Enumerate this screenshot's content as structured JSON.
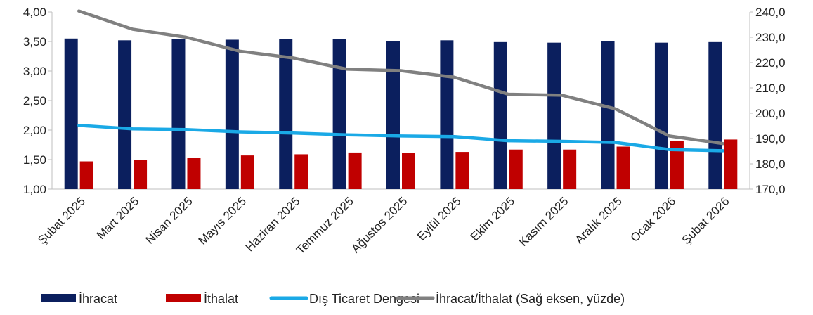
{
  "chart_data": {
    "type": "bar",
    "categories": [
      "Şubat 2025",
      "Mart 2025",
      "Nisan 2025",
      "Mayıs 2025",
      "Haziran 2025",
      "Temmuz 2025",
      "Ağustos 2025",
      "Eylül 2025",
      "Ekim 2025",
      "Kasım 2025",
      "Aralık 2025",
      "Ocak 2026",
      "Şubat 2026"
    ],
    "series": [
      {
        "name": "İhracat",
        "kind": "bar",
        "axis": "left",
        "color": "#0b1f5e",
        "values": [
          3.55,
          3.52,
          3.54,
          3.53,
          3.54,
          3.54,
          3.51,
          3.52,
          3.49,
          3.48,
          3.51,
          3.48,
          3.49
        ]
      },
      {
        "name": "İthalat",
        "kind": "bar",
        "axis": "left",
        "color": "#c00000",
        "values": [
          1.47,
          1.5,
          1.53,
          1.57,
          1.59,
          1.62,
          1.61,
          1.63,
          1.67,
          1.67,
          1.72,
          1.81,
          1.84
        ]
      },
      {
        "name": "Dış Ticaret Dengesi",
        "kind": "line",
        "axis": "left",
        "color": "#1aa9e6",
        "values": [
          2.08,
          2.02,
          2.01,
          1.97,
          1.95,
          1.92,
          1.9,
          1.89,
          1.82,
          1.81,
          1.79,
          1.67,
          1.65
        ]
      },
      {
        "name": "İhracat/İthalat (Sağ eksen, yüzde)",
        "kind": "line",
        "axis": "right",
        "color": "#808080",
        "values": [
          240.4,
          233.2,
          230.0,
          224.5,
          221.8,
          217.4,
          216.8,
          214.2,
          207.5,
          207.1,
          201.7,
          191.0,
          188.0
        ]
      }
    ],
    "y_left": {
      "min": 1.0,
      "max": 4.0,
      "ticks": [
        "1,00",
        "1,50",
        "2,00",
        "2,50",
        "3,00",
        "3,50",
        "4,00"
      ]
    },
    "y_right": {
      "min": 170.0,
      "max": 240.0,
      "ticks": [
        "170,0",
        "180,0",
        "190,0",
        "200,0",
        "210,0",
        "220,0",
        "230,0",
        "240,0"
      ]
    },
    "xlabel": "",
    "ylabel": "",
    "title": "",
    "grid": false,
    "legend_placement": "bottom"
  }
}
